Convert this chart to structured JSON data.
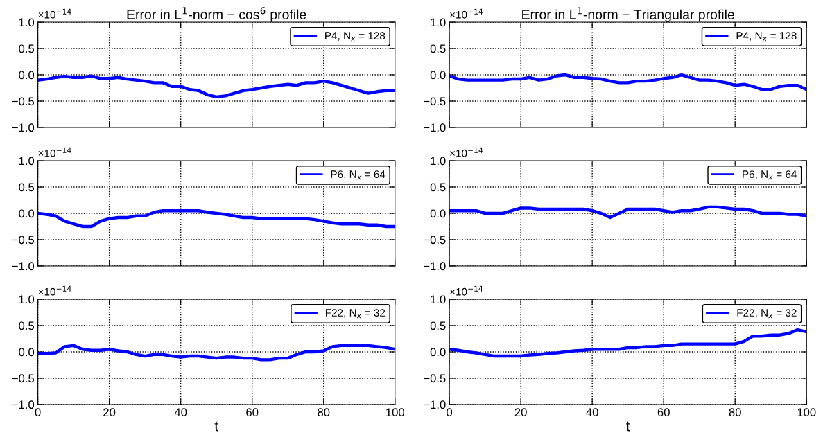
{
  "chart_data": [
    {
      "type": "line",
      "title": "Error in L$^{1}$-norm − cos$^{6}$ profile",
      "annotations": [
        "×10$^{−14}$"
      ],
      "x": [
        0,
        2.5,
        5,
        7.5,
        10,
        12.5,
        15,
        17.5,
        20,
        22.5,
        25,
        27.5,
        30,
        32.5,
        35,
        37.5,
        40,
        42.5,
        45,
        47.5,
        50,
        52.5,
        55,
        57.5,
        60,
        62.5,
        65,
        67.5,
        70,
        72.5,
        75,
        77.5,
        80,
        82.5,
        85,
        87.5,
        90,
        92.5,
        95,
        97.5,
        100
      ],
      "xlim": [
        0,
        100
      ],
      "xticks": [
        0,
        20,
        40,
        60,
        80,
        100
      ],
      "ylim": [
        -1.0,
        1.0
      ],
      "yticks": [
        {
          "value": -1.0,
          "label": "−1.0"
        },
        {
          "value": -0.5,
          "label": "−0.5"
        },
        {
          "value": 0.0,
          "label": "0.0"
        },
        {
          "value": 0.5,
          "label": "0.5"
        },
        {
          "value": 1.0,
          "label": "1.0"
        }
      ],
      "grid": true,
      "legend": "top right",
      "tick_labels": "y",
      "series": [
        {
          "name": "P4, N$_{x}$ = 128",
          "color": "#0000ff",
          "values": [
            -0.1,
            -0.08,
            -0.05,
            -0.03,
            -0.05,
            -0.05,
            -0.02,
            -0.07,
            -0.07,
            -0.05,
            -0.08,
            -0.1,
            -0.12,
            -0.15,
            -0.15,
            -0.22,
            -0.22,
            -0.28,
            -0.3,
            -0.38,
            -0.42,
            -0.4,
            -0.35,
            -0.3,
            -0.28,
            -0.25,
            -0.22,
            -0.2,
            -0.18,
            -0.2,
            -0.15,
            -0.15,
            -0.12,
            -0.15,
            -0.2,
            -0.25,
            -0.3,
            -0.35,
            -0.32,
            -0.3,
            -0.3
          ]
        }
      ]
    },
    {
      "type": "line",
      "title": "Error in L$^{1}$-norm − Triangular profile",
      "annotations": [
        "×10$^{−14}$"
      ],
      "x": [
        0,
        2.5,
        5,
        7.5,
        10,
        12.5,
        15,
        17.5,
        20,
        22.5,
        25,
        27.5,
        30,
        32.5,
        35,
        37.5,
        40,
        42.5,
        45,
        47.5,
        50,
        52.5,
        55,
        57.5,
        60,
        62.5,
        65,
        67.5,
        70,
        72.5,
        75,
        77.5,
        80,
        82.5,
        85,
        87.5,
        90,
        92.5,
        95,
        97.5,
        100
      ],
      "xlim": [
        0,
        100
      ],
      "xticks": [
        0,
        20,
        40,
        60,
        80,
        100
      ],
      "ylim": [
        -1.0,
        1.0
      ],
      "yticks": [
        {
          "value": -1.0,
          "label": "−1.0"
        },
        {
          "value": -0.5,
          "label": "−0.5"
        },
        {
          "value": 0.0,
          "label": "0.0"
        },
        {
          "value": 0.5,
          "label": "0.5"
        },
        {
          "value": 1.0,
          "label": "1.0"
        }
      ],
      "grid": true,
      "legend": "top right",
      "tick_labels": "y",
      "series": [
        {
          "name": "P4, N$_{x}$ = 128",
          "color": "#0000ff",
          "values": [
            -0.02,
            -0.08,
            -0.1,
            -0.1,
            -0.1,
            -0.1,
            -0.1,
            -0.08,
            -0.08,
            -0.05,
            -0.1,
            -0.08,
            -0.02,
            0.0,
            -0.05,
            -0.05,
            -0.07,
            -0.08,
            -0.12,
            -0.15,
            -0.15,
            -0.12,
            -0.12,
            -0.1,
            -0.07,
            -0.05,
            0.0,
            -0.05,
            -0.1,
            -0.1,
            -0.12,
            -0.15,
            -0.2,
            -0.18,
            -0.22,
            -0.28,
            -0.28,
            -0.22,
            -0.2,
            -0.2,
            -0.28
          ]
        }
      ]
    },
    {
      "type": "line",
      "annotations": [
        "×10$^{−14}$"
      ],
      "x": [
        0,
        2.5,
        5,
        7.5,
        10,
        12.5,
        15,
        17.5,
        20,
        22.5,
        25,
        27.5,
        30,
        32.5,
        35,
        37.5,
        40,
        42.5,
        45,
        47.5,
        50,
        52.5,
        55,
        57.5,
        60,
        62.5,
        65,
        67.5,
        70,
        72.5,
        75,
        77.5,
        80,
        82.5,
        85,
        87.5,
        90,
        92.5,
        95,
        97.5,
        100
      ],
      "xlim": [
        0,
        100
      ],
      "xticks": [
        0,
        20,
        40,
        60,
        80,
        100
      ],
      "ylim": [
        -1.0,
        1.0
      ],
      "yticks": [
        {
          "value": -1.0,
          "label": "−1.0"
        },
        {
          "value": -0.5,
          "label": "−0.5"
        },
        {
          "value": 0.0,
          "label": "0.0"
        },
        {
          "value": 0.5,
          "label": "0.5"
        },
        {
          "value": 1.0,
          "label": "1.0"
        }
      ],
      "grid": true,
      "legend": "top right",
      "tick_labels": "y",
      "series": [
        {
          "name": "P6, N$_{x}$ = 64",
          "color": "#0000ff",
          "values": [
            0.0,
            -0.02,
            -0.05,
            -0.15,
            -0.2,
            -0.25,
            -0.25,
            -0.15,
            -0.1,
            -0.08,
            -0.08,
            -0.05,
            -0.05,
            0.02,
            0.05,
            0.05,
            0.05,
            0.05,
            0.05,
            0.02,
            0.0,
            -0.02,
            -0.05,
            -0.08,
            -0.08,
            -0.1,
            -0.1,
            -0.1,
            -0.1,
            -0.1,
            -0.1,
            -0.12,
            -0.15,
            -0.18,
            -0.2,
            -0.2,
            -0.2,
            -0.22,
            -0.22,
            -0.25,
            -0.25
          ]
        }
      ]
    },
    {
      "type": "line",
      "annotations": [
        "×10$^{−14}$"
      ],
      "x": [
        0,
        2.5,
        5,
        7.5,
        10,
        12.5,
        15,
        17.5,
        20,
        22.5,
        25,
        27.5,
        30,
        32.5,
        35,
        37.5,
        40,
        42.5,
        45,
        47.5,
        50,
        52.5,
        55,
        57.5,
        60,
        62.5,
        65,
        67.5,
        70,
        72.5,
        75,
        77.5,
        80,
        82.5,
        85,
        87.5,
        90,
        92.5,
        95,
        97.5,
        100
      ],
      "xlim": [
        0,
        100
      ],
      "xticks": [
        0,
        20,
        40,
        60,
        80,
        100
      ],
      "ylim": [
        -1.0,
        1.0
      ],
      "yticks": [
        {
          "value": -1.0,
          "label": "−1.0"
        },
        {
          "value": -0.5,
          "label": "−0.5"
        },
        {
          "value": 0.0,
          "label": "0.0"
        },
        {
          "value": 0.5,
          "label": "0.5"
        },
        {
          "value": 1.0,
          "label": "1.0"
        }
      ],
      "grid": true,
      "legend": "top right",
      "tick_labels": "y",
      "series": [
        {
          "name": "P6, N$_{x}$ = 64",
          "color": "#0000ff",
          "values": [
            0.05,
            0.05,
            0.05,
            0.05,
            0.0,
            0.0,
            0.0,
            0.05,
            0.1,
            0.1,
            0.08,
            0.08,
            0.08,
            0.08,
            0.08,
            0.08,
            0.05,
            0.0,
            -0.08,
            0.0,
            0.08,
            0.08,
            0.08,
            0.08,
            0.05,
            0.02,
            0.05,
            0.05,
            0.08,
            0.12,
            0.12,
            0.1,
            0.08,
            0.08,
            0.05,
            0.0,
            0.0,
            0.0,
            -0.02,
            -0.02,
            -0.05
          ]
        }
      ]
    },
    {
      "type": "line",
      "xlabel": "t",
      "annotations": [
        "×10$^{−14}$"
      ],
      "x": [
        0,
        2.5,
        5,
        7.5,
        10,
        12.5,
        15,
        17.5,
        20,
        22.5,
        25,
        27.5,
        30,
        32.5,
        35,
        37.5,
        40,
        42.5,
        45,
        47.5,
        50,
        52.5,
        55,
        57.5,
        60,
        62.5,
        65,
        67.5,
        70,
        72.5,
        75,
        77.5,
        80,
        82.5,
        85,
        87.5,
        90,
        92.5,
        95,
        97.5,
        100
      ],
      "xlim": [
        0,
        100
      ],
      "xticks": [
        0,
        20,
        40,
        60,
        80,
        100
      ],
      "ylim": [
        -1.0,
        1.0
      ],
      "yticks": [
        {
          "value": -1.0,
          "label": "−1.0"
        },
        {
          "value": -0.5,
          "label": "−0.5"
        },
        {
          "value": 0.0,
          "label": "0.0"
        },
        {
          "value": 0.5,
          "label": "0.5"
        },
        {
          "value": 1.0,
          "label": "1.0"
        }
      ],
      "grid": true,
      "legend": "top right",
      "series": [
        {
          "name": "F22, N$_{x}$ = 32",
          "color": "#0000ff",
          "values": [
            -0.03,
            -0.03,
            -0.02,
            0.1,
            0.12,
            0.05,
            0.03,
            0.03,
            0.05,
            0.02,
            0.0,
            -0.05,
            -0.08,
            -0.05,
            -0.05,
            -0.08,
            -0.1,
            -0.08,
            -0.08,
            -0.1,
            -0.12,
            -0.1,
            -0.1,
            -0.12,
            -0.12,
            -0.15,
            -0.15,
            -0.12,
            -0.12,
            -0.05,
            0.0,
            0.0,
            0.02,
            0.1,
            0.12,
            0.12,
            0.12,
            0.12,
            0.1,
            0.08,
            0.05
          ]
        }
      ]
    },
    {
      "type": "line",
      "xlabel": "t",
      "annotations": [
        "×10$^{−14}$"
      ],
      "x": [
        0,
        2.5,
        5,
        7.5,
        10,
        12.5,
        15,
        17.5,
        20,
        22.5,
        25,
        27.5,
        30,
        32.5,
        35,
        37.5,
        40,
        42.5,
        45,
        47.5,
        50,
        52.5,
        55,
        57.5,
        60,
        62.5,
        65,
        67.5,
        70,
        72.5,
        75,
        77.5,
        80,
        82.5,
        85,
        87.5,
        90,
        92.5,
        95,
        97.5,
        100
      ],
      "xlim": [
        0,
        100
      ],
      "xticks": [
        0,
        20,
        40,
        60,
        80,
        100
      ],
      "ylim": [
        -1.0,
        1.0
      ],
      "yticks": [
        {
          "value": -1.0,
          "label": "−1.0"
        },
        {
          "value": -0.5,
          "label": "−0.5"
        },
        {
          "value": 0.0,
          "label": "0.0"
        },
        {
          "value": 0.5,
          "label": "0.5"
        },
        {
          "value": 1.0,
          "label": "1.0"
        }
      ],
      "grid": true,
      "legend": "top right",
      "series": [
        {
          "name": "F22, N$_{x}$ = 32",
          "color": "#0000ff",
          "values": [
            0.05,
            0.03,
            0.0,
            -0.02,
            -0.05,
            -0.08,
            -0.08,
            -0.08,
            -0.08,
            -0.06,
            -0.05,
            -0.03,
            -0.02,
            0.0,
            0.02,
            0.03,
            0.05,
            0.05,
            0.05,
            0.05,
            0.08,
            0.08,
            0.1,
            0.1,
            0.12,
            0.12,
            0.15,
            0.15,
            0.15,
            0.15,
            0.15,
            0.15,
            0.15,
            0.2,
            0.3,
            0.3,
            0.32,
            0.32,
            0.35,
            0.42,
            0.38
          ]
        }
      ]
    }
  ]
}
